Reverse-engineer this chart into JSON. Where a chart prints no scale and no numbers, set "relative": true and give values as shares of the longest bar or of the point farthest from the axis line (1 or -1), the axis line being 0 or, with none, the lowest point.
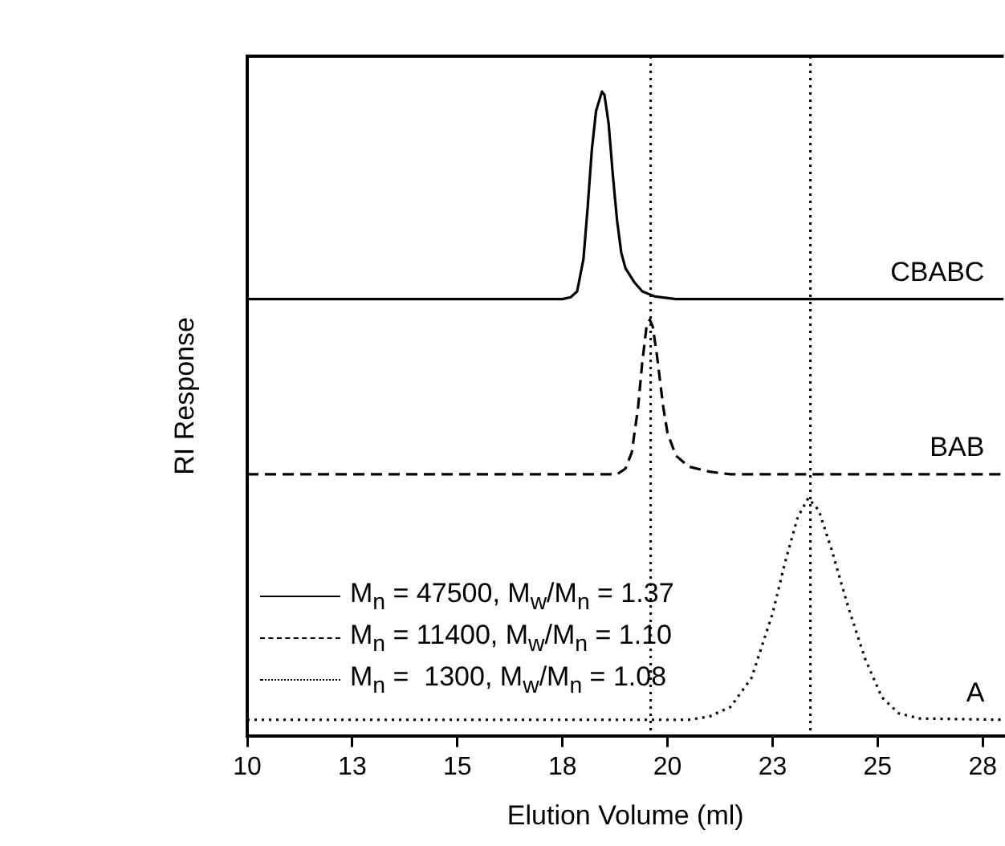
{
  "chart_data": {
    "type": "line",
    "xlabel": "Elution Volume (ml)",
    "ylabel": "RI Response",
    "relative": true,
    "xlim": [
      10,
      28
    ],
    "xticks": [
      10,
      {
        "value": 12.5,
        "label": "13"
      },
      15,
      {
        "value": 17.5,
        "label": "18"
      },
      20,
      {
        "value": 22.5,
        "label": "23"
      },
      25,
      {
        "value": 27.5,
        "label": "28"
      }
    ],
    "grid": false,
    "legend": "bottom left",
    "marker": "none",
    "series": [
      {
        "name": "M$_{n}$ = 47500, M$_{w}$/M$_{n}$ = 1.37",
        "color": "#000000",
        "line_style": "solid",
        "x": [
          10,
          17.5,
          17.7,
          17.85,
          18.0,
          18.1,
          18.2,
          18.3,
          18.44,
          18.5,
          18.6,
          18.7,
          18.8,
          18.9,
          19.0,
          19.2,
          19.4,
          19.7,
          20.2,
          28
        ],
        "values": [
          0.678,
          0.678,
          0.681,
          0.69,
          0.74,
          0.82,
          0.91,
          0.97,
          1.0,
          0.995,
          0.95,
          0.87,
          0.8,
          0.75,
          0.726,
          0.705,
          0.69,
          0.682,
          0.678,
          0.678
        ]
      },
      {
        "name": "M$_{n}$ = 11400, M$_{w}$/M$_{n}$ = 1.10",
        "color": "#000000",
        "line_style": "dashed",
        "x": [
          10,
          18.8,
          19.0,
          19.15,
          19.3,
          19.4,
          19.5,
          19.58,
          19.65,
          19.75,
          19.9,
          20.0,
          20.2,
          20.5,
          21.0,
          21.5,
          28
        ],
        "values": [
          0.406,
          0.406,
          0.415,
          0.44,
          0.51,
          0.58,
          0.635,
          0.646,
          0.635,
          0.59,
          0.51,
          0.47,
          0.435,
          0.418,
          0.41,
          0.406,
          0.406
        ]
      },
      {
        "name": "M$_{n}$ =  1300, M$_{w}$/M$_{n}$ = 1.08",
        "color": "#000000",
        "line_style": "dotted",
        "x": [
          10,
          20.5,
          21.0,
          21.5,
          22.0,
          22.5,
          22.8,
          23.1,
          23.35,
          23.6,
          23.9,
          24.3,
          24.7,
          25.1,
          25.5,
          26.0,
          28
        ],
        "values": [
          0.025,
          0.025,
          0.03,
          0.045,
          0.09,
          0.19,
          0.27,
          0.34,
          0.369,
          0.35,
          0.29,
          0.2,
          0.12,
          0.06,
          0.035,
          0.027,
          0.025
        ]
      }
    ],
    "ref_lines": [
      {
        "axis": "x",
        "value": 19.6,
        "line_style": "dotted",
        "color": "#000000"
      },
      {
        "axis": "x",
        "value": 23.4,
        "line_style": "dotted",
        "color": "#000000"
      }
    ],
    "annotations": [
      "CBABC",
      "BAB",
      "A"
    ]
  }
}
